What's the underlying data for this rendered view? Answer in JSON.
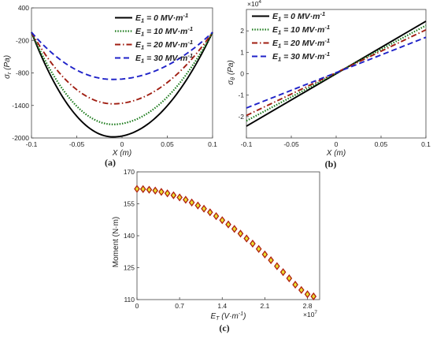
{
  "chart_data": [
    {
      "panel": "(a)",
      "type": "line",
      "xlabel": "X (m)",
      "ylabel": "σr (Pa)",
      "xlim": [
        -0.1,
        0.1
      ],
      "ylim": [
        -2000,
        400
      ],
      "xticks": [
        "-0.1",
        "-0.05",
        "0",
        "0.05",
        "0.1"
      ],
      "yticks": [
        "400",
        "-200",
        "-800",
        "-1400",
        "-2000"
      ],
      "legend_position": "top-right",
      "series": [
        {
          "name": "E1 = 0 MV·m-1",
          "color": "#000000",
          "style": "solid",
          "bottom_x": -0.01,
          "bottom_y": -1980
        },
        {
          "name": "E1 = 10 MV·m-1",
          "color": "#1a7a1a",
          "style": "dotted",
          "bottom_x": -0.01,
          "bottom_y": -1750
        },
        {
          "name": "E1 = 20 MV·m-1",
          "color": "#a01e12",
          "style": "dashdot",
          "bottom_x": -0.01,
          "bottom_y": -1370
        },
        {
          "name": "E1 = 30 MV·m-1",
          "color": "#1f22c8",
          "style": "dashed",
          "bottom_x": -0.01,
          "bottom_y": -920
        }
      ],
      "endpoints": {
        "x": [
          -0.1,
          0.1
        ],
        "y": -50
      }
    },
    {
      "panel": "(b)",
      "type": "line",
      "xlabel": "X (m)",
      "ylabel": "σθ (Pa)",
      "multiplier": "×10",
      "multiplier_exp": "4",
      "xlim": [
        -0.1,
        0.1
      ],
      "ylim": [
        -3,
        3
      ],
      "xticks": [
        "-0.1",
        "-0.05",
        "0",
        "0.05",
        "0.1"
      ],
      "yticks": [
        "2",
        "1",
        "0",
        "-1",
        "-2"
      ],
      "legend_position": "top-left",
      "series": [
        {
          "name": "E1 = 0 MV·m-1",
          "color": "#000000",
          "style": "solid",
          "x": [
            -0.1,
            0.1
          ],
          "y": [
            -2.45,
            2.45
          ]
        },
        {
          "name": "E1 = 10 MV·m-1",
          "color": "#1a7a1a",
          "style": "dotted",
          "x": [
            -0.1,
            0.1
          ],
          "y": [
            -2.2,
            2.25
          ]
        },
        {
          "name": "E1 = 20 MV·m-1",
          "color": "#a01e12",
          "style": "dashdot",
          "x": [
            -0.1,
            0.1
          ],
          "y": [
            -1.95,
            2.05
          ]
        },
        {
          "name": "E1 = 30 MV·m-1",
          "color": "#1f22c8",
          "style": "dashed",
          "x": [
            -0.1,
            0.1
          ],
          "y": [
            -1.6,
            1.7
          ]
        }
      ]
    },
    {
      "panel": "(c)",
      "type": "scatter",
      "xlabel": "ET (V·m-1)",
      "ylabel": "Moment (N·m)",
      "x_multiplier": "×10",
      "x_multiplier_exp": "7",
      "xlim": [
        0,
        3
      ],
      "ylim": [
        110,
        170
      ],
      "xticks": [
        "0",
        "0.7",
        "1.4",
        "2.1",
        "2.8"
      ],
      "xtick_values": [
        0,
        0.7,
        1.4,
        2.1,
        2.8
      ],
      "yticks": [
        "170",
        "155",
        "140",
        "125",
        "110"
      ],
      "ytick_values": [
        170,
        155,
        140,
        125,
        110
      ],
      "marker_color": "#b02010",
      "marker_fill": "#e8e030",
      "x": [
        0,
        0.1,
        0.2,
        0.3,
        0.4,
        0.5,
        0.6,
        0.7,
        0.8,
        0.9,
        1.0,
        1.1,
        1.2,
        1.3,
        1.4,
        1.5,
        1.6,
        1.7,
        1.8,
        1.9,
        2.0,
        2.1,
        2.2,
        2.3,
        2.4,
        2.5,
        2.6,
        2.7,
        2.8,
        2.9
      ],
      "y": [
        162.0,
        161.9,
        161.6,
        161.2,
        160.6,
        159.9,
        159.0,
        158.0,
        156.9,
        155.6,
        154.2,
        152.7,
        151.0,
        149.2,
        147.3,
        145.3,
        143.2,
        141.0,
        138.7,
        136.3,
        133.8,
        131.2,
        128.5,
        125.7,
        122.9,
        120.0,
        117.0,
        114.5,
        112.5,
        111.5
      ]
    }
  ]
}
